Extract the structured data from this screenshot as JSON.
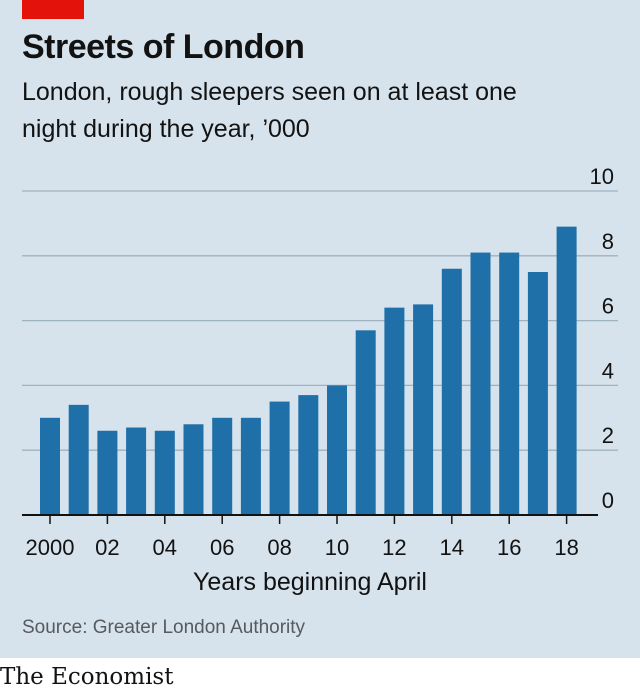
{
  "header": {
    "title": "Streets of London",
    "subtitle": "London, rough sleepers seen on at least one night during the year, ’000"
  },
  "source": "Source: Greater London Authority",
  "brand": "The Economist",
  "colors": {
    "bar": "#1f6fa8",
    "accent": "#e3120b",
    "background": "#d6e3ec",
    "grid": "#9fb2bf"
  },
  "chart_data": {
    "type": "bar",
    "xlabel": "Years beginning April",
    "ylabel": "",
    "ylim": [
      0,
      10
    ],
    "yticks": [
      0,
      2,
      4,
      6,
      8,
      10
    ],
    "grid": true,
    "categories": [
      "2000",
      "01",
      "02",
      "03",
      "04",
      "05",
      "06",
      "07",
      "08",
      "09",
      "10",
      "11",
      "12",
      "13",
      "14",
      "15",
      "16",
      "17",
      "18"
    ],
    "xtick_labels": [
      "2000",
      "02",
      "04",
      "06",
      "08",
      "10",
      "12",
      "14",
      "16",
      "18"
    ],
    "values": [
      3.0,
      3.4,
      2.6,
      2.7,
      2.6,
      2.8,
      3.0,
      3.0,
      3.5,
      3.7,
      4.0,
      5.7,
      6.4,
      6.5,
      7.6,
      8.1,
      8.1,
      7.5,
      8.9
    ]
  }
}
